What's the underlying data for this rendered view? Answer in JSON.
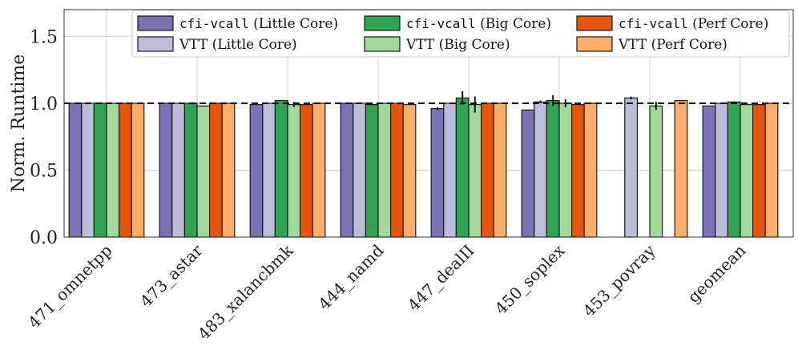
{
  "chart_data": {
    "type": "bar",
    "ylabel": "Norm. Runtime",
    "ylim": [
      0,
      1.7
    ],
    "yticks": [
      "0.0",
      "0.5",
      "1.0",
      "1.5"
    ],
    "baseline": 1.0,
    "grid": true,
    "legend_position": "top-right",
    "categories": [
      "471_omnetpp",
      "473_astar",
      "483_xalancbmk",
      "444_namd",
      "447_dealII",
      "450_soplex",
      "453_povray",
      "geomean"
    ],
    "series": [
      {
        "name": "cfi-vcall (Little Core)",
        "mono": "cfi-vcall",
        "suffix": " (Little Core)",
        "color": "#7b72b5",
        "values": [
          1.0,
          1.0,
          0.99,
          1.0,
          0.96,
          0.95,
          null,
          0.98
        ],
        "errors": [
          0,
          0,
          0,
          0,
          0.01,
          0,
          0,
          0
        ]
      },
      {
        "name": "VTT (Little Core)",
        "mono": "",
        "suffix": "VTT (Little Core)",
        "color": "#bcbcdb",
        "values": [
          1.0,
          1.0,
          1.0,
          1.0,
          1.0,
          1.01,
          1.04,
          1.0
        ],
        "errors": [
          0,
          0,
          0,
          0,
          0,
          0.01,
          0.01,
          0
        ]
      },
      {
        "name": "cfi-vcall (Big Core)",
        "mono": "cfi-vcall",
        "suffix": " (Big Core)",
        "color": "#31a354",
        "values": [
          1.0,
          1.0,
          1.02,
          0.99,
          1.04,
          1.02,
          null,
          1.01
        ],
        "errors": [
          0,
          0,
          0,
          0,
          0.05,
          0.04,
          0,
          0
        ]
      },
      {
        "name": "VTT (Big Core)",
        "mono": "",
        "suffix": "VTT (Big Core)",
        "color": "#a1d99b",
        "values": [
          1.0,
          0.98,
          0.99,
          1.0,
          0.99,
          1.0,
          0.98,
          0.99
        ],
        "errors": [
          0,
          0,
          0.02,
          0,
          0.06,
          0.03,
          0.03,
          0
        ]
      },
      {
        "name": "cfi-vcall (Perf Core)",
        "mono": "cfi-vcall",
        "suffix": " (Perf Core)",
        "color": "#e6550d",
        "values": [
          1.0,
          1.0,
          0.99,
          1.0,
          1.0,
          0.99,
          null,
          0.99
        ],
        "errors": [
          0,
          0,
          0,
          0,
          0,
          0,
          0,
          0
        ]
      },
      {
        "name": "VTT (Perf Core)",
        "mono": "",
        "suffix": "VTT (Perf Core)",
        "color": "#fdae6b",
        "values": [
          1.0,
          1.0,
          1.0,
          0.99,
          1.0,
          1.0,
          1.02,
          1.0
        ],
        "errors": [
          0,
          0,
          0,
          0,
          0,
          0,
          0,
          0
        ]
      }
    ]
  }
}
